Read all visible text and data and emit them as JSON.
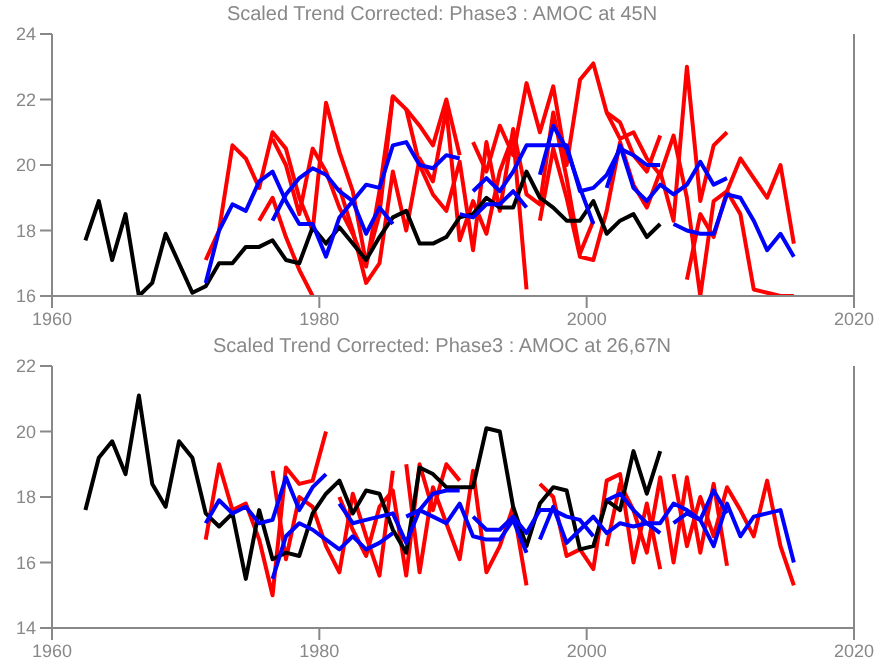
{
  "chart_data": [
    {
      "type": "line",
      "title": "Scaled Trend Corrected: Phase3 : AMOC at 45N",
      "xlim": [
        1960,
        2020
      ],
      "xticks": [
        1960,
        1980,
        2000,
        2020
      ],
      "ylim": [
        16,
        24
      ],
      "yticks": [
        16,
        18,
        20,
        22,
        24
      ],
      "grid": false,
      "legend": false,
      "marker": "none",
      "series": [
        {
          "color": "#ff0000",
          "x": [
            1971.5,
            1972.5,
            1973.5,
            1974.5,
            1975.5,
            1976.5,
            1977.5,
            1978.5,
            1979.5,
            1980.5,
            1981.5,
            1982.5,
            1983.5,
            1984.5,
            1985.5
          ],
          "values": [
            17.1,
            18.0,
            20.6,
            20.2,
            19.3,
            21.0,
            20.5,
            19.0,
            18.0,
            21.9,
            20.4,
            19.2,
            17.0,
            18.5,
            22.1
          ]
        },
        {
          "color": "#ff0000",
          "x": [
            1976.5,
            1977.5,
            1978.5,
            1979.5,
            1980.5,
            1981.5,
            1982.5,
            1983.5,
            1984.5,
            1985.5,
            1986.5,
            1987.5,
            1988.5,
            1989.5,
            1990.5
          ],
          "values": [
            20.8,
            20.0,
            18.5,
            20.5,
            19.8,
            18.7,
            17.9,
            16.9,
            19.2,
            22.1,
            21.7,
            21.2,
            20.6,
            22.0,
            20.3
          ]
        },
        {
          "color": "#ff0000",
          "x": [
            1991.5,
            1992.5,
            1993.5,
            1994.5,
            1995.5,
            1996.5,
            1997.5,
            1998.5,
            1999.5,
            2000.5,
            2001.5,
            2002.5,
            2003.5,
            2004.5,
            2005.5
          ],
          "values": [
            20.7,
            19.8,
            21.2,
            20.3,
            22.5,
            21.0,
            22.4,
            20.0,
            22.6,
            23.1,
            21.6,
            21.3,
            20.3,
            19.8,
            20.9
          ]
        },
        {
          "color": "#ff0000",
          "x": [
            1996.5,
            1997.5,
            1998.5,
            1999.5,
            2000.5,
            2001.5,
            2002.5,
            2003.5,
            2004.5,
            2005.5,
            2006.5,
            2007.5,
            2008.5,
            2009.5,
            2010.5
          ],
          "values": [
            18.3,
            20.5,
            19.0,
            17.2,
            17.1,
            18.6,
            20.7,
            19.4,
            18.7,
            19.8,
            18.3,
            23.0,
            18.9,
            20.6,
            21.0
          ]
        },
        {
          "color": "#ff0000",
          "x": [
            2001.5,
            2002.5,
            2003.5,
            2004.5,
            2005.5,
            2006.5,
            2007.5,
            2008.5,
            2009.5,
            2010.5,
            2011.5,
            2012.5,
            2013.5,
            2014.5,
            2015.5
          ],
          "values": [
            21.6,
            20.8,
            21.0,
            20.2,
            19.7,
            20.9,
            19.0,
            16.0,
            18.9,
            19.2,
            20.2,
            19.6,
            19.0,
            20.0,
            17.6
          ]
        },
        {
          "color": "#ff0000",
          "x": [
            1981.5,
            1982.5,
            1983.5,
            1984.5,
            1985.5,
            1986.5,
            1987.5,
            1988.5,
            1989.5,
            1990.5,
            1991.5,
            1992.5,
            1993.5,
            1994.5,
            1995.5
          ],
          "values": [
            19.3,
            18.0,
            16.4,
            17.0,
            19.8,
            18.0,
            20.2,
            19.5,
            21.7,
            17.7,
            18.9,
            17.9,
            19.8,
            20.9,
            16.2
          ]
        },
        {
          "color": "#ff0000",
          "x": [
            1986.5,
            1987.5,
            1988.5,
            1989.5,
            1990.5,
            1991.5,
            1992.5,
            1993.5,
            1994.5,
            1995.5,
            1996.5,
            1997.5,
            1998.5,
            1999.5,
            2000.5
          ],
          "values": [
            21.7,
            20.0,
            19.1,
            18.6,
            20.1,
            17.4,
            20.7,
            18.6,
            21.1,
            19.1,
            18.8,
            21.6,
            19.6,
            17.3,
            18.3
          ]
        },
        {
          "color": "#ff0000",
          "x": [
            2007.5,
            2008.5,
            2009.5,
            2010.5,
            2011.5,
            2012.5,
            2013.5,
            2014.5,
            2015.5
          ],
          "values": [
            16.5,
            18.5,
            17.8,
            19.2,
            18.5,
            16.2,
            16.1,
            16.0,
            16.0
          ]
        },
        {
          "color": "#ff0000",
          "x": [
            1975.5,
            1976.5,
            1977.5,
            1978.5,
            1979.5
          ],
          "values": [
            18.3,
            19.0,
            17.8,
            16.8,
            16.0
          ]
        },
        {
          "color": "#000000",
          "x": [
            1962.5,
            1963.5,
            1964.5,
            1965.5,
            1966.5,
            1967.5,
            1968.5,
            1969.5,
            1970.5,
            1971.5,
            1972.5,
            1973.5,
            1974.5,
            1975.5,
            1976.5,
            1977.5,
            1978.5,
            1979.5,
            1980.5,
            1981.5,
            1982.5,
            1983.5,
            1984.5,
            1985.5,
            1986.5,
            1987.5,
            1988.5,
            1989.5,
            1990.5,
            1991.5,
            1992.5,
            1993.5,
            1994.5,
            1995.5,
            1996.5,
            1997.5,
            1998.5,
            1999.5,
            2000.5,
            2001.5,
            2002.5,
            2003.5,
            2004.5,
            2005.5
          ],
          "values": [
            17.7,
            18.9,
            17.1,
            18.5,
            16.0,
            16.4,
            17.9,
            17.0,
            16.1,
            16.3,
            17.0,
            17.0,
            17.5,
            17.5,
            17.7,
            17.1,
            17.0,
            18.1,
            17.6,
            18.1,
            17.6,
            17.1,
            17.8,
            18.4,
            18.6,
            17.6,
            17.6,
            17.8,
            18.4,
            18.5,
            19.0,
            18.7,
            18.7,
            19.8,
            19.0,
            18.7,
            18.3,
            18.3,
            18.9,
            17.9,
            18.3,
            18.5,
            17.8,
            18.2
          ]
        },
        {
          "color": "#0000ff",
          "x": [
            1971.5,
            1972.5,
            1973.5,
            1974.5,
            1975.5,
            1976.5,
            1977.5,
            1978.5,
            1979.5,
            1980.5,
            1981.5,
            1982.5,
            1983.5,
            1984.5,
            1985.5
          ],
          "values": [
            16.4,
            18.0,
            18.8,
            18.6,
            19.5,
            19.8,
            18.9,
            18.2,
            18.2,
            17.2,
            18.4,
            18.9,
            17.9,
            18.7,
            18.2
          ]
        },
        {
          "color": "#0000ff",
          "x": [
            1976.5,
            1977.5,
            1978.5,
            1979.5,
            1980.5,
            1981.5,
            1982.5,
            1983.5,
            1984.5,
            1985.5,
            1986.5,
            1987.5,
            1988.5,
            1989.5,
            1990.5
          ],
          "values": [
            18.3,
            19.1,
            19.6,
            19.9,
            19.7,
            19.2,
            18.9,
            19.4,
            19.3,
            20.6,
            20.7,
            20.0,
            19.9,
            20.3,
            20.2
          ]
        },
        {
          "color": "#0000ff",
          "x": [
            1991.5,
            1992.5,
            1993.5,
            1994.5,
            1995.5,
            1996.5,
            1997.5,
            1998.5,
            1999.5,
            2000.5,
            2001.5,
            2002.5,
            2003.5,
            2004.5,
            2005.5
          ],
          "values": [
            19.2,
            19.6,
            19.2,
            19.8,
            20.6,
            20.6,
            20.6,
            20.6,
            19.2,
            19.3,
            19.7,
            20.5,
            20.3,
            20.0,
            20.0
          ]
        },
        {
          "color": "#0000ff",
          "x": [
            1990.5,
            1991.5,
            1992.5,
            1993.5,
            1994.5,
            1995.5
          ],
          "values": [
            18.5,
            18.4,
            18.8,
            18.8,
            19.2,
            18.7
          ]
        },
        {
          "color": "#0000ff",
          "x": [
            1996.5,
            1997.5,
            1998.5,
            1999.5,
            2000.5
          ],
          "values": [
            19.7,
            21.2,
            20.5,
            19.3,
            18.2
          ]
        },
        {
          "color": "#0000ff",
          "x": [
            2001.5,
            2002.5,
            2003.5,
            2004.5,
            2005.5,
            2006.5,
            2007.5,
            2008.5,
            2009.5,
            2010.5
          ],
          "values": [
            19.3,
            20.6,
            19.3,
            18.9,
            19.4,
            19.1,
            19.4,
            20.1,
            19.4,
            19.6
          ]
        },
        {
          "color": "#0000ff",
          "x": [
            2006.5,
            2007.5,
            2008.5,
            2009.5,
            2010.5,
            2011.5,
            2012.5,
            2013.5,
            2014.5,
            2015.5
          ],
          "values": [
            18.2,
            18.0,
            17.9,
            17.9,
            19.1,
            19.0,
            18.3,
            17.4,
            17.9,
            17.2
          ]
        }
      ]
    },
    {
      "type": "line",
      "title": "Scaled Trend Corrected: Phase3 : AMOC at 26,67N",
      "xlim": [
        1960,
        2020
      ],
      "xticks": [
        1960,
        1980,
        2000,
        2020
      ],
      "ylim": [
        14,
        22
      ],
      "yticks": [
        14,
        16,
        18,
        20,
        22
      ],
      "grid": false,
      "legend": false,
      "marker": "none",
      "series": [
        {
          "color": "#ff0000",
          "x": [
            1971.5,
            1972.5,
            1973.5,
            1974.5,
            1975.5,
            1976.5,
            1977.5,
            1978.5,
            1979.5,
            1980.5
          ],
          "values": [
            16.7,
            19.0,
            17.6,
            17.8,
            16.7,
            15.0,
            18.9,
            18.4,
            18.5,
            20.0
          ]
        },
        {
          "color": "#ff0000",
          "x": [
            1976.5,
            1977.5,
            1978.5,
            1979.5,
            1980.5,
            1981.5,
            1982.5,
            1983.5,
            1984.5,
            1985.5
          ],
          "values": [
            18.8,
            16.1,
            18.0,
            17.7,
            16.5,
            15.7,
            18.1,
            16.8,
            15.6,
            18.8
          ]
        },
        {
          "color": "#ff0000",
          "x": [
            1981.5,
            1982.5,
            1983.5,
            1984.5,
            1985.5,
            1986.5,
            1987.5,
            1988.5,
            1989.5,
            1990.5
          ],
          "values": [
            18.0,
            17.0,
            16.2,
            17.7,
            18.2,
            15.6,
            19.0,
            17.6,
            19.0,
            18.5
          ]
        },
        {
          "color": "#ff0000",
          "x": [
            1986.5,
            1987.5,
            1988.5,
            1989.5,
            1990.5,
            1991.5,
            1992.5,
            1993.5,
            1994.5,
            1995.5
          ],
          "values": [
            19.0,
            15.7,
            18.3,
            17.2,
            16.1,
            18.8,
            15.7,
            16.5,
            17.7,
            15.3
          ]
        },
        {
          "color": "#ff0000",
          "x": [
            1996.5,
            1997.5,
            1998.5,
            1999.5,
            2000.5,
            2001.5,
            2002.5,
            2003.5,
            2004.5,
            2005.5
          ],
          "values": [
            18.4,
            18.0,
            16.2,
            16.4,
            15.8,
            18.5,
            18.7,
            16.0,
            17.8,
            15.8
          ]
        },
        {
          "color": "#ff0000",
          "x": [
            2001.5,
            2002.5,
            2003.5,
            2004.5,
            2005.5,
            2006.5,
            2007.5,
            2008.5,
            2009.5,
            2010.5
          ],
          "values": [
            16.5,
            18.4,
            17.6,
            16.3,
            18.6,
            16.0,
            18.6,
            16.3,
            18.4,
            15.9
          ]
        },
        {
          "color": "#ff0000",
          "x": [
            2006.5,
            2007.5,
            2008.5,
            2009.5,
            2010.5,
            2011.5,
            2012.5,
            2013.5,
            2014.5,
            2015.5
          ],
          "values": [
            18.7,
            16.5,
            18.0,
            16.8,
            18.3,
            17.6,
            16.8,
            18.5,
            16.5,
            15.3
          ]
        },
        {
          "color": "#000000",
          "x": [
            1962.5,
            1963.5,
            1964.5,
            1965.5,
            1966.5,
            1967.5,
            1968.5,
            1969.5,
            1970.5,
            1971.5,
            1972.5,
            1973.5,
            1974.5,
            1975.5,
            1976.5,
            1977.5,
            1978.5,
            1979.5,
            1980.5,
            1981.5,
            1982.5,
            1983.5,
            1984.5,
            1985.5,
            1986.5,
            1987.5,
            1988.5,
            1989.5,
            1990.5,
            1991.5,
            1992.5,
            1993.5,
            1994.5,
            1995.5,
            1996.5,
            1997.5,
            1998.5,
            1999.5,
            2000.5,
            2001.5,
            2002.5,
            2003.5,
            2004.5,
            2005.5
          ],
          "values": [
            17.6,
            19.2,
            19.7,
            18.7,
            21.1,
            18.4,
            17.7,
            19.7,
            19.2,
            17.5,
            17.1,
            17.5,
            15.5,
            17.6,
            16.1,
            16.3,
            16.2,
            17.5,
            18.1,
            18.5,
            17.5,
            18.2,
            18.1,
            17.0,
            16.3,
            18.9,
            18.7,
            18.3,
            18.3,
            18.3,
            20.1,
            20.0,
            17.7,
            16.5,
            17.8,
            18.3,
            18.2,
            16.4,
            16.5,
            17.9,
            17.6,
            19.4,
            18.1,
            19.4
          ]
        },
        {
          "color": "#0000ff",
          "x": [
            1971.5,
            1972.5,
            1973.5,
            1974.5,
            1975.5,
            1976.5,
            1977.5,
            1978.5,
            1979.5,
            1980.5
          ],
          "values": [
            17.2,
            17.9,
            17.5,
            17.7,
            17.2,
            17.3,
            18.6,
            17.6,
            18.3,
            18.7
          ]
        },
        {
          "color": "#0000ff",
          "x": [
            1976.5,
            1977.5,
            1978.5,
            1979.5,
            1980.5,
            1981.5,
            1982.5,
            1983.5,
            1984.5,
            1985.5
          ],
          "values": [
            15.5,
            16.8,
            17.2,
            17.0,
            16.7,
            16.4,
            16.8,
            16.4,
            16.6,
            16.9
          ]
        },
        {
          "color": "#0000ff",
          "x": [
            1981.5,
            1982.5,
            1983.5,
            1984.5,
            1985.5,
            1986.5,
            1987.5,
            1988.5,
            1989.5,
            1990.5
          ],
          "values": [
            17.8,
            17.2,
            17.3,
            17.4,
            17.5,
            16.6,
            17.6,
            18.1,
            18.2,
            18.2
          ]
        },
        {
          "color": "#0000ff",
          "x": [
            1986.5,
            1987.5,
            1988.5,
            1989.5,
            1990.5,
            1991.5,
            1992.5,
            1993.5,
            1994.5,
            1995.5
          ],
          "values": [
            17.4,
            17.6,
            17.4,
            17.2,
            17.8,
            16.8,
            16.7,
            16.7,
            17.3,
            16.3
          ]
        },
        {
          "color": "#0000ff",
          "x": [
            1991.5,
            1992.5,
            1993.5,
            1994.5,
            1995.5,
            1996.5,
            1997.5,
            1998.5,
            1999.5,
            2000.5
          ],
          "values": [
            17.4,
            17.0,
            17.0,
            17.4,
            16.9,
            17.6,
            17.6,
            17.4,
            17.3,
            16.8
          ]
        },
        {
          "color": "#0000ff",
          "x": [
            1996.5,
            1997.5,
            1998.5,
            1999.5,
            2000.5,
            2001.5,
            2002.5,
            2003.5,
            2004.5,
            2005.5
          ],
          "values": [
            16.7,
            17.7,
            16.6,
            17.0,
            17.4,
            16.9,
            17.2,
            17.1,
            17.2,
            16.9
          ]
        },
        {
          "color": "#0000ff",
          "x": [
            2001.5,
            2002.5,
            2003.5,
            2004.5,
            2005.5,
            2006.5,
            2007.5,
            2008.5,
            2009.5,
            2010.5
          ],
          "values": [
            17.9,
            18.1,
            17.6,
            17.2,
            17.2,
            17.8,
            17.6,
            17.3,
            18.2,
            17.5
          ]
        },
        {
          "color": "#0000ff",
          "x": [
            2006.5,
            2007.5,
            2008.5,
            2009.5,
            2010.5,
            2011.5,
            2012.5,
            2013.5,
            2014.5,
            2015.5
          ],
          "values": [
            17.2,
            17.5,
            17.3,
            16.5,
            17.8,
            16.8,
            17.4,
            17.5,
            17.6,
            16.0
          ]
        }
      ]
    }
  ]
}
